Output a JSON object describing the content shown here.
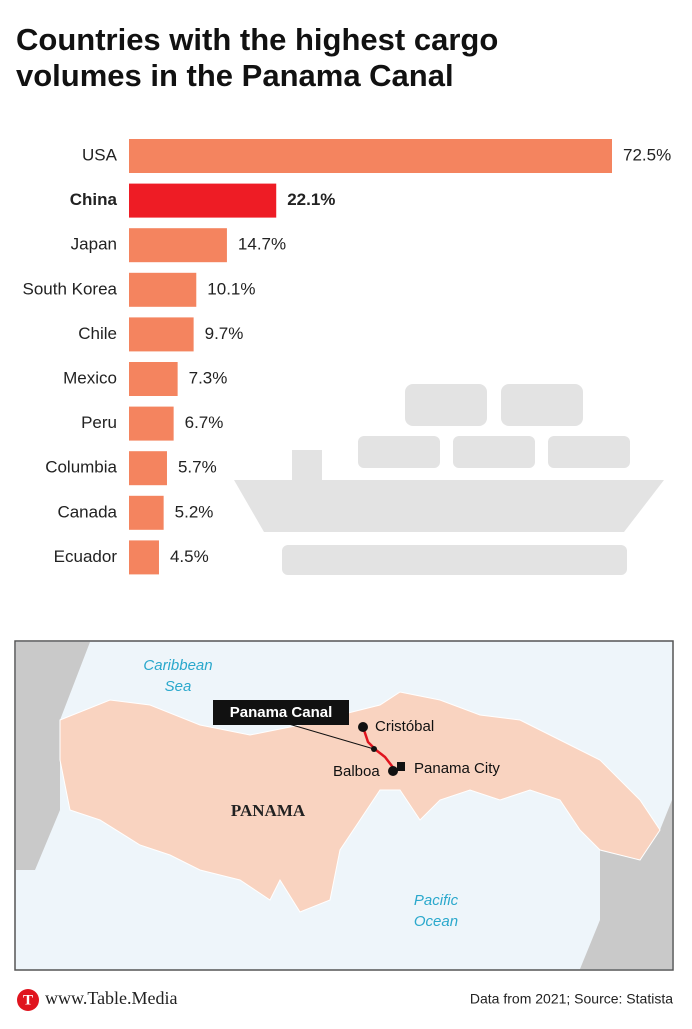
{
  "chart_data": {
    "type": "bar",
    "orientation": "horizontal",
    "title": [
      "Countries with the highest cargo",
      "volumes in the Panama Canal"
    ],
    "categories": [
      "USA",
      "China",
      "Japan",
      "South Korea",
      "Chile",
      "Mexico",
      "Peru",
      "Columbia",
      "Canada",
      "Ecuador"
    ],
    "values": [
      72.5,
      22.1,
      14.7,
      10.1,
      9.7,
      7.3,
      6.7,
      5.7,
      5.2,
      4.5
    ],
    "value_labels": [
      "72.5%",
      "22.1%",
      "14.7%",
      "10.1%",
      "9.7%",
      "7.3%",
      "6.7%",
      "5.7%",
      "5.2%",
      "4.5%"
    ],
    "color": "#f4845f",
    "colors": [
      "#f4845f",
      "#ee1c25",
      "#f4845f",
      "#f4845f",
      "#f4845f",
      "#f4845f",
      "#f4845f",
      "#f4845f",
      "#f4845f",
      "#f4845f"
    ]
  },
  "map": {
    "sea_north": [
      "Caribbean",
      "Sea"
    ],
    "canal": "Panama Canal",
    "north_port": "Cristóbal",
    "south_port": "Balboa",
    "capital": "Panama City",
    "country": "PANAMA",
    "sea_south": [
      "Pacific",
      "Ocean"
    ]
  },
  "footer": {
    "brand": "www.Table.Media",
    "source": "Data from 2021; Source: Statista"
  }
}
